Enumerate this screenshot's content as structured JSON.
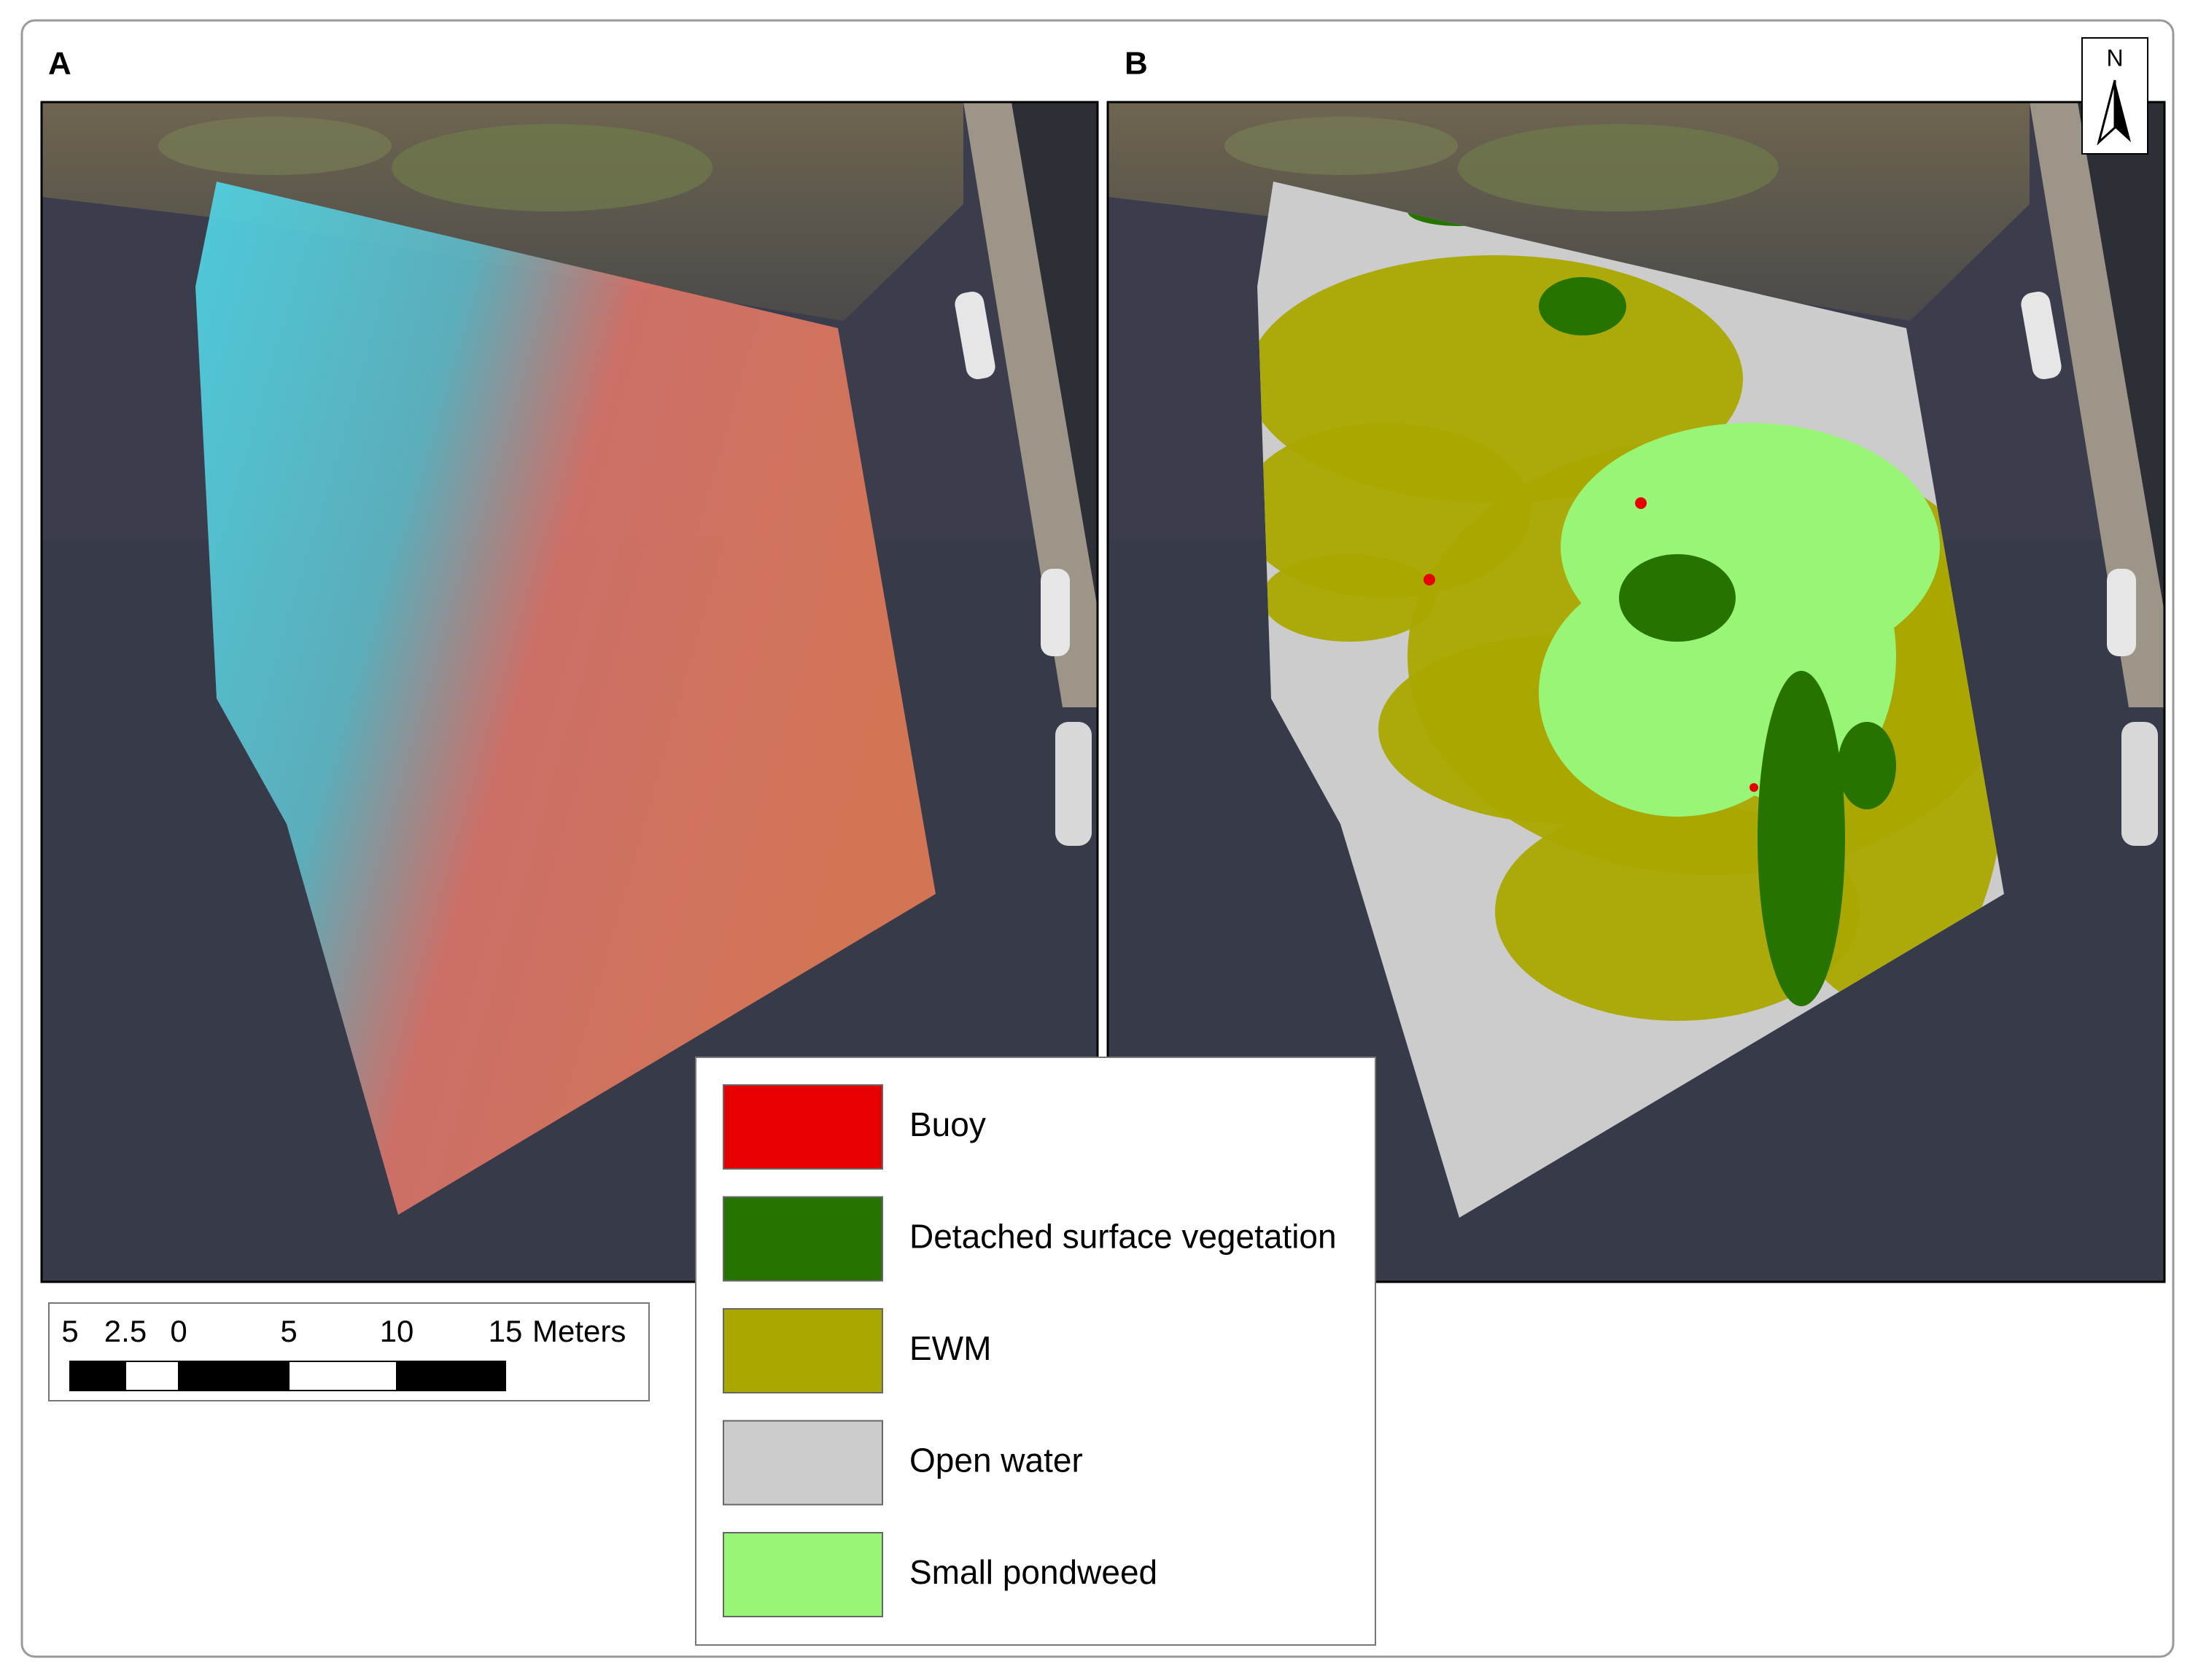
{
  "panels": [
    {
      "label": "A"
    },
    {
      "label": "B"
    }
  ],
  "north_arrow": {
    "label": "N"
  },
  "legend": [
    {
      "name": "Buoy",
      "color": "#e60000"
    },
    {
      "name": "Detached surface vegetation",
      "color": "#267300"
    },
    {
      "name": "EWM",
      "color": "#aaa800"
    },
    {
      "name": "Open water",
      "color": "#cccccc"
    },
    {
      "name": "Small pondweed",
      "color": "#98f575"
    }
  ],
  "scale_bar": {
    "labels": [
      "5",
      "2.5",
      "0",
      "5",
      "10",
      "15"
    ],
    "unit": "Meters"
  }
}
